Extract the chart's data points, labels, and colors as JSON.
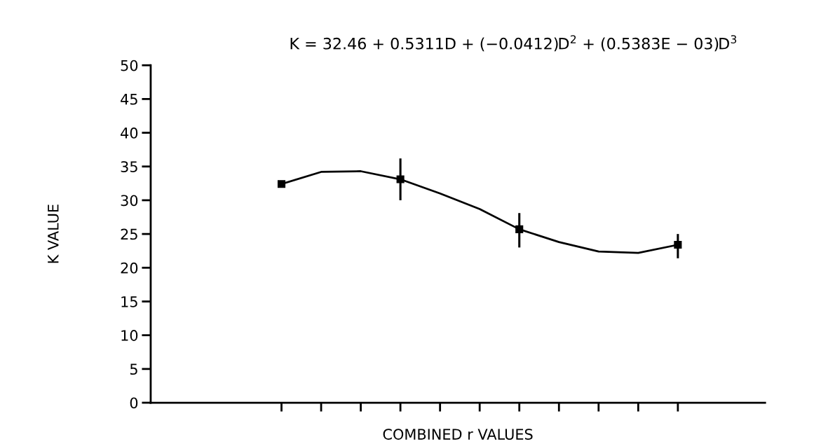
{
  "chart_data": {
    "type": "line",
    "xlabel": "COMBINED r VALUES",
    "ylabel": "K VALUE",
    "annotations": [
      "K = 32.46 + 0.5311D + (−0.0412)D$^{2}$ + (0.5383E − 03)D$^{3}$"
    ],
    "categories": [
      null,
      null,
      null,
      null,
      null,
      null,
      null,
      null,
      null,
      null,
      null
    ],
    "series": [
      {
        "color": "#000000",
        "values": [
          32.4,
          34.2,
          34.3,
          33.1,
          31.0,
          28.7,
          25.7,
          23.8,
          22.4,
          22.2,
          23.4
        ],
        "line_style": "solid",
        "marker": "none"
      },
      {
        "type": "scatter",
        "color": "#000000",
        "values": [
          32.4,
          null,
          null,
          33.1,
          null,
          null,
          25.7,
          null,
          null,
          null,
          23.4
        ],
        "errors": [
          null,
          null,
          null,
          [
            30.0,
            36.2
          ],
          null,
          null,
          [
            23.0,
            28.1
          ],
          null,
          null,
          null,
          [
            21.4,
            25.0
          ]
        ],
        "marker": "square"
      }
    ],
    "ylim": [
      0,
      50
    ],
    "yticks": [
      0,
      5,
      10,
      15,
      20,
      25,
      30,
      35,
      40,
      45,
      50
    ],
    "grid": false,
    "legend": false
  }
}
